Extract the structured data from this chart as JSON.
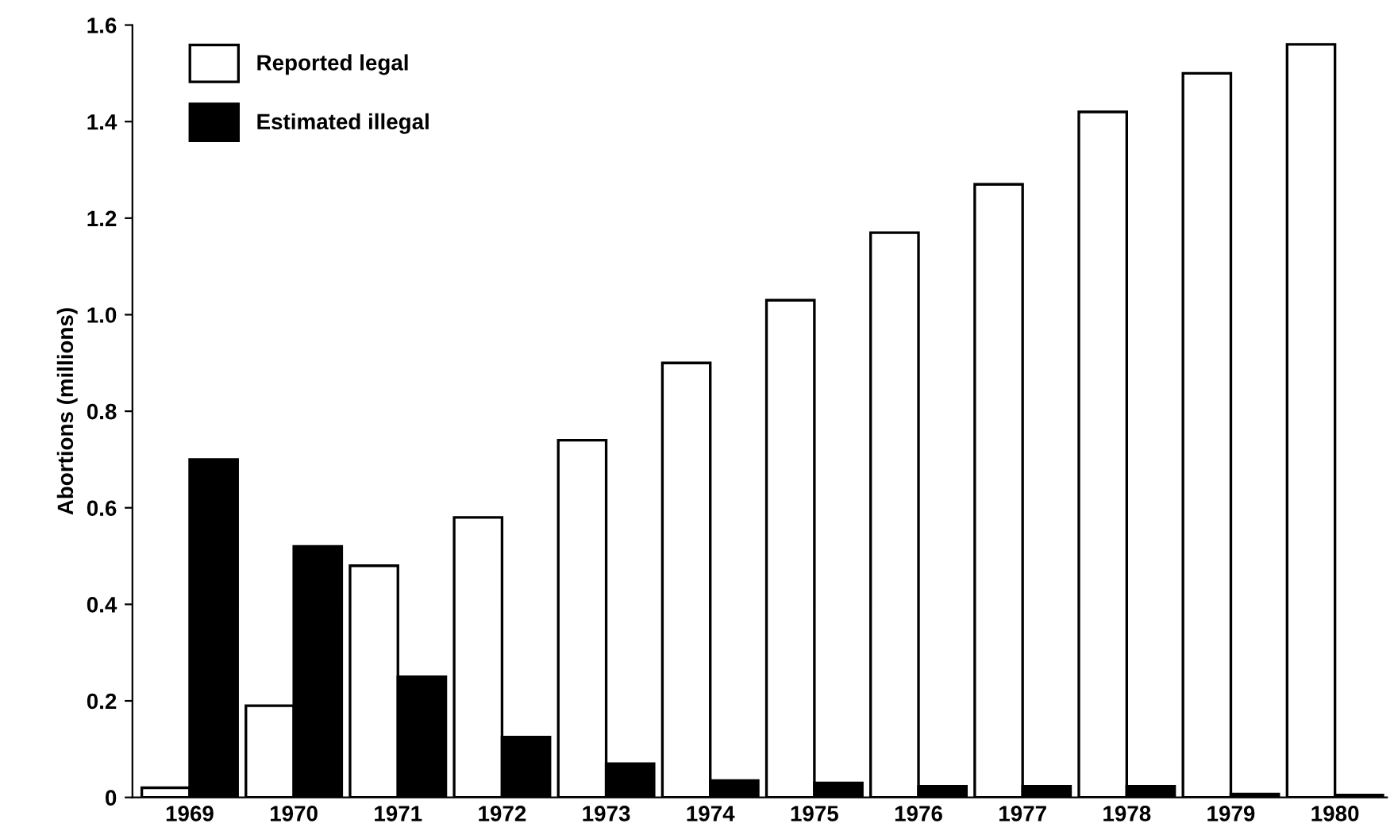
{
  "chart_data": {
    "type": "bar",
    "ylabel": "Abortions (millions)",
    "categories": [
      "1969",
      "1970",
      "1971",
      "1972",
      "1973",
      "1974",
      "1975",
      "1976",
      "1977",
      "1978",
      "1979",
      "1980"
    ],
    "series": [
      {
        "name": "Reported legal",
        "color": "#ffffff",
        "values": [
          0.02,
          0.19,
          0.48,
          0.58,
          0.74,
          0.9,
          1.03,
          1.17,
          1.27,
          1.42,
          1.5,
          1.56
        ]
      },
      {
        "name": "Estimated illegal",
        "color": "#000000",
        "values": [
          0.7,
          0.52,
          0.25,
          0.125,
          0.07,
          0.035,
          0.03,
          0.023,
          0.023,
          0.023,
          0.007,
          0.005
        ]
      }
    ],
    "ylim": [
      0,
      1.6
    ],
    "yticks": [
      0,
      0.2,
      0.4,
      0.6,
      0.8,
      {
        "value": 1.0,
        "label": "1.0"
      },
      1.2,
      1.4,
      1.6
    ],
    "legend": "top left",
    "grid": false
  }
}
